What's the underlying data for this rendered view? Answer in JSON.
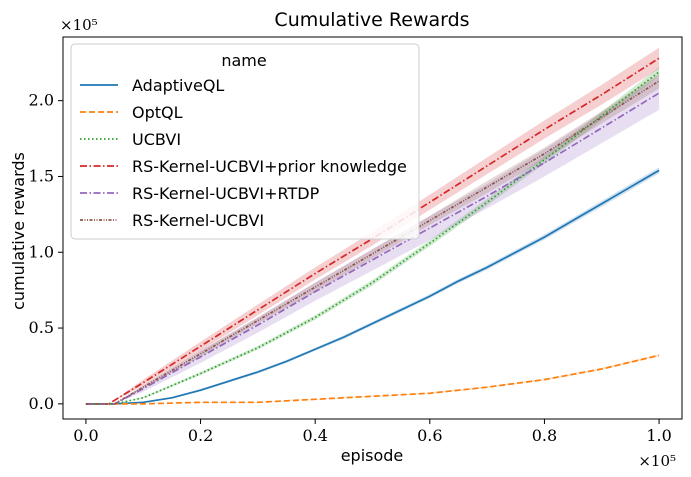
{
  "chart_data": {
    "type": "line",
    "title": "Cumulative Rewards",
    "xlabel": "episode",
    "ylabel": "cumulative rewards",
    "x_multiplier": "×10⁵",
    "y_multiplier": "×10⁵",
    "xlim": [
      -0.04,
      1.04
    ],
    "ylim": [
      -0.1,
      2.42
    ],
    "xticks": [
      0.0,
      0.2,
      0.4,
      0.6,
      0.8,
      1.0
    ],
    "xtick_labels": [
      "0.0",
      "0.2",
      "0.4",
      "0.6",
      "0.8",
      "1.0"
    ],
    "yticks": [
      0.0,
      0.5,
      1.0,
      1.5,
      2.0
    ],
    "ytick_labels": [
      "0.0",
      "0.5",
      "1.0",
      "1.5",
      "2.0"
    ],
    "grid": false,
    "legend": {
      "title": "name",
      "position": "top-left"
    },
    "series": [
      {
        "name": "AdaptiveQL",
        "color": "#1f77b4",
        "dash": "solid",
        "x": [
          0,
          0.05,
          0.1,
          0.15,
          0.2,
          0.25,
          0.3,
          0.35,
          0.4,
          0.45,
          0.5,
          0.55,
          0.6,
          0.65,
          0.7,
          0.75,
          0.8,
          0.85,
          0.9,
          0.95,
          1.0
        ],
        "y": [
          0,
          0.0,
          0.01,
          0.04,
          0.09,
          0.15,
          0.21,
          0.28,
          0.36,
          0.44,
          0.53,
          0.62,
          0.71,
          0.81,
          0.9,
          1.0,
          1.1,
          1.21,
          1.32,
          1.43,
          1.54
        ],
        "band": [
          0,
          0.0,
          0.005,
          0.006,
          0.008,
          0.008,
          0.01,
          0.01,
          0.01,
          0.012,
          0.012,
          0.013,
          0.013,
          0.014,
          0.015,
          0.016,
          0.017,
          0.018,
          0.019,
          0.02,
          0.02
        ]
      },
      {
        "name": "OptQL",
        "color": "#ff7f0e",
        "dash": "6,3",
        "x": [
          0,
          0.1,
          0.2,
          0.3,
          0.4,
          0.5,
          0.6,
          0.7,
          0.8,
          0.9,
          1.0
        ],
        "y": [
          0,
          0.0,
          0.01,
          0.01,
          0.03,
          0.05,
          0.07,
          0.11,
          0.16,
          0.23,
          0.32
        ],
        "band": [
          0,
          0,
          0.002,
          0.002,
          0.003,
          0.003,
          0.004,
          0.005,
          0.006,
          0.007,
          0.008
        ]
      },
      {
        "name": "UCBVI",
        "color": "#2ca02c",
        "dash": "1.5,2.5",
        "x": [
          0,
          0.05,
          0.1,
          0.15,
          0.2,
          0.3,
          0.4,
          0.5,
          0.6,
          0.7,
          0.8,
          0.9,
          1.0
        ],
        "y": [
          0,
          0.0,
          0.04,
          0.12,
          0.2,
          0.37,
          0.57,
          0.8,
          1.06,
          1.33,
          1.61,
          1.9,
          2.19
        ],
        "band": [
          0,
          0,
          0.005,
          0.008,
          0.01,
          0.012,
          0.015,
          0.018,
          0.02,
          0.022,
          0.025,
          0.028,
          0.03
        ]
      },
      {
        "name": "RS-Kernel-UCBVI+prior knowledge",
        "color": "#d62728",
        "dash": "7,2.5,1.5,2.5",
        "x": [
          0,
          0.04,
          0.1,
          0.2,
          0.3,
          0.4,
          0.5,
          0.6,
          0.7,
          0.8,
          0.9,
          1.0
        ],
        "y": [
          0,
          0.0,
          0.14,
          0.38,
          0.62,
          0.86,
          1.09,
          1.33,
          1.57,
          1.81,
          2.04,
          2.28
        ],
        "band": [
          0,
          0,
          0.02,
          0.03,
          0.035,
          0.04,
          0.045,
          0.05,
          0.055,
          0.06,
          0.065,
          0.07
        ]
      },
      {
        "name": "RS-Kernel-UCBVI+RTDP",
        "color": "#9467bd",
        "dash": "7,2.5,1.5,2.5",
        "x": [
          0,
          0.05,
          0.1,
          0.2,
          0.3,
          0.4,
          0.5,
          0.6,
          0.7,
          0.8,
          0.9,
          1.0
        ],
        "y": [
          0,
          0.0,
          0.1,
          0.31,
          0.52,
          0.74,
          0.95,
          1.16,
          1.37,
          1.59,
          1.82,
          2.05
        ],
        "band": [
          0,
          0,
          0.02,
          0.04,
          0.05,
          0.06,
          0.07,
          0.08,
          0.08,
          0.09,
          0.1,
          0.11
        ]
      },
      {
        "name": "RS-Kernel-UCBVI",
        "color": "#8c564b",
        "dash": "3,1.5,1,1.5,1,1.5",
        "x": [
          0,
          0.05,
          0.1,
          0.2,
          0.3,
          0.4,
          0.5,
          0.6,
          0.7,
          0.8,
          0.9,
          1.0
        ],
        "y": [
          0,
          0.0,
          0.11,
          0.33,
          0.55,
          0.77,
          0.99,
          1.21,
          1.43,
          1.65,
          1.89,
          2.13
        ],
        "band": [
          0,
          0,
          0.01,
          0.02,
          0.02,
          0.03,
          0.03,
          0.03,
          0.04,
          0.04,
          0.04,
          0.05
        ]
      }
    ]
  }
}
